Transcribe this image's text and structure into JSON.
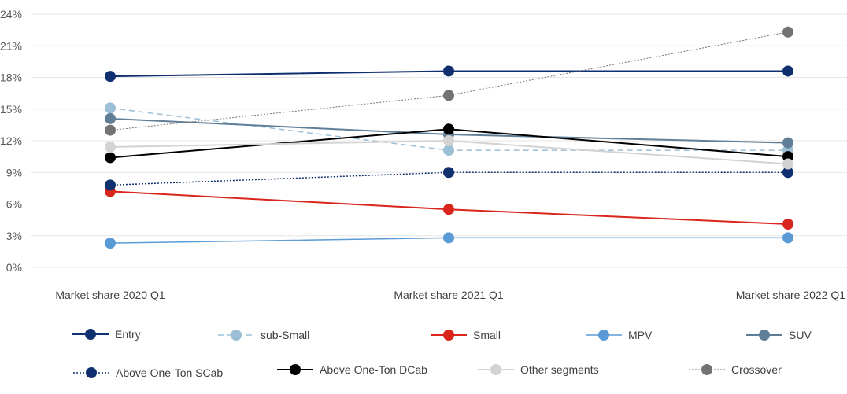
{
  "chart_data": {
    "type": "line",
    "title": "",
    "xlabel": "",
    "ylabel": "",
    "categories": [
      "Market share 2020 Q1",
      "Market share 2021 Q1",
      "Market share 2022 Q1"
    ],
    "ylim": [
      0,
      24
    ],
    "yticks": [
      0,
      3,
      6,
      9,
      12,
      15,
      18,
      21,
      24
    ],
    "ytick_labels": [
      "0%",
      "3%",
      "6%",
      "9%",
      "12%",
      "15%",
      "18%",
      "21%",
      "24%"
    ],
    "grid": "horizontal",
    "legend_position": "bottom",
    "series": [
      {
        "name": "Entry",
        "values": [
          18.1,
          18.6,
          18.6
        ],
        "color": "#0f2f6e",
        "dash": "solid",
        "width": 2
      },
      {
        "name": "sub-Small",
        "values": [
          15.1,
          11.1,
          11.1
        ],
        "color": "#9cbfd6",
        "dash": "dashed",
        "width": 1.5
      },
      {
        "name": "Small",
        "values": [
          7.2,
          5.5,
          4.1
        ],
        "color": "#d9251c",
        "dash": "solid",
        "width": 2
      },
      {
        "name": "MPV",
        "values": [
          2.3,
          2.8,
          2.8
        ],
        "color": "#5b9bd5",
        "dash": "solid",
        "width": 1.5
      },
      {
        "name": "SUV",
        "values": [
          14.1,
          12.6,
          11.8
        ],
        "color": "#5f7f99",
        "dash": "solid",
        "width": 2
      },
      {
        "name": "Above One-Ton SCab",
        "values": [
          7.8,
          9.0,
          9.0
        ],
        "color": "#0f2f6e",
        "dash": "dotted",
        "width": 1.5
      },
      {
        "name": "Above One-Ton DCab",
        "values": [
          10.4,
          13.1,
          10.5
        ],
        "color": "#000000",
        "dash": "solid",
        "width": 2
      },
      {
        "name": "Other segments",
        "values": [
          11.4,
          12.0,
          9.8
        ],
        "color": "#d3d3d3",
        "dash": "solid",
        "width": 2
      },
      {
        "name": "Crossover",
        "values": [
          13.0,
          16.3,
          22.3
        ],
        "color": "#737373",
        "dash": "dotted",
        "width": 1
      }
    ]
  }
}
